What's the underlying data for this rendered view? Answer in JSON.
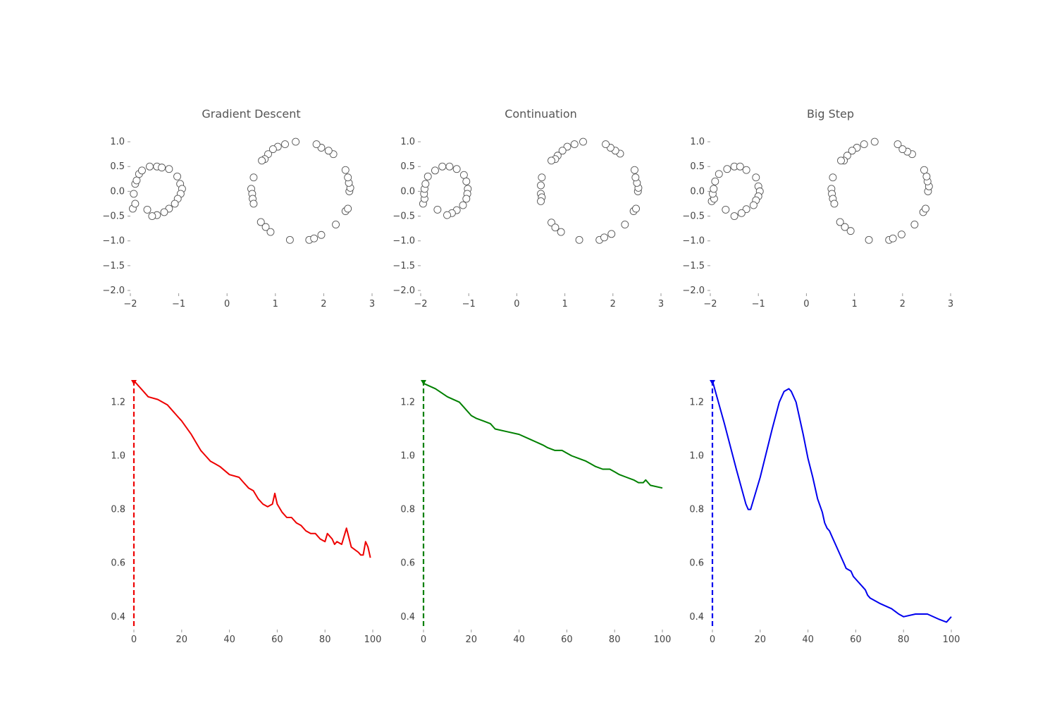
{
  "chart_data": [
    {
      "type": "scatter",
      "title": "Gradient Descent",
      "xlim": [
        -2,
        3
      ],
      "ylim": [
        -2,
        1.2
      ],
      "xticks": [
        "−2",
        "−1",
        "0",
        "1",
        "2",
        "3"
      ],
      "yticks": [
        "1.0",
        "0.5",
        "0.0",
        "−0.5",
        "−1.0",
        "−1.5",
        "−2.0"
      ],
      "marker_color": "#ffffff",
      "marker_edge_color": "#555555",
      "series": [
        {
          "points": [
            [
              -1.95,
              -0.35
            ],
            [
              -1.9,
              -0.25
            ],
            [
              -1.93,
              -0.05
            ],
            [
              -1.9,
              0.15
            ],
            [
              -1.87,
              0.22
            ],
            [
              -1.82,
              0.35
            ],
            [
              -1.76,
              0.42
            ],
            [
              -1.6,
              0.5
            ],
            [
              -1.45,
              0.5
            ],
            [
              -1.35,
              0.48
            ],
            [
              -1.2,
              0.45
            ],
            [
              -1.03,
              0.3
            ],
            [
              -0.97,
              0.15
            ],
            [
              -0.93,
              0.05
            ],
            [
              -0.96,
              -0.05
            ],
            [
              -1.02,
              -0.15
            ],
            [
              -1.08,
              -0.25
            ],
            [
              -1.2,
              -0.35
            ],
            [
              -1.3,
              -0.42
            ],
            [
              -1.45,
              -0.48
            ],
            [
              -1.55,
              -0.5
            ],
            [
              -1.65,
              -0.37
            ]
          ]
        },
        {
          "points": [
            [
              0.55,
              0.28
            ],
            [
              0.5,
              0.05
            ],
            [
              0.52,
              -0.05
            ],
            [
              0.53,
              -0.15
            ],
            [
              0.55,
              -0.25
            ],
            [
              0.7,
              -0.62
            ],
            [
              0.8,
              -0.72
            ],
            [
              0.9,
              -0.82
            ],
            [
              1.3,
              -0.98
            ],
            [
              1.7,
              -0.98
            ],
            [
              1.8,
              -0.95
            ],
            [
              1.95,
              -0.88
            ],
            [
              2.25,
              -0.67
            ],
            [
              2.45,
              -0.4
            ],
            [
              2.5,
              -0.35
            ],
            [
              2.53,
              0.0
            ],
            [
              2.55,
              0.07
            ],
            [
              2.52,
              0.17
            ],
            [
              2.5,
              0.28
            ],
            [
              2.45,
              0.43
            ],
            [
              2.2,
              0.75
            ],
            [
              2.1,
              0.82
            ],
            [
              1.95,
              0.88
            ],
            [
              1.85,
              0.95
            ],
            [
              1.42,
              1.0
            ],
            [
              1.2,
              0.95
            ],
            [
              1.05,
              0.9
            ],
            [
              0.95,
              0.85
            ],
            [
              0.85,
              0.75
            ],
            [
              0.78,
              0.65
            ],
            [
              0.72,
              0.62
            ]
          ]
        }
      ]
    },
    {
      "type": "scatter",
      "title": "Continuation",
      "xlim": [
        -2,
        3
      ],
      "ylim": [
        -2,
        1.2
      ],
      "xticks": [
        "−2",
        "−1",
        "0",
        "1",
        "2",
        "3"
      ],
      "yticks": [
        "1.0",
        "0.5",
        "0.0",
        "−0.5",
        "−1.0",
        "−1.5",
        "−2.0"
      ],
      "marker_color": "#ffffff",
      "marker_edge_color": "#555555",
      "series": [
        {
          "points": [
            [
              -1.95,
              -0.25
            ],
            [
              -1.92,
              -0.15
            ],
            [
              -1.93,
              -0.05
            ],
            [
              -1.92,
              0.05
            ],
            [
              -1.9,
              0.15
            ],
            [
              -1.85,
              0.3
            ],
            [
              -1.7,
              0.42
            ],
            [
              -1.55,
              0.5
            ],
            [
              -1.4,
              0.5
            ],
            [
              -1.25,
              0.45
            ],
            [
              -1.1,
              0.33
            ],
            [
              -1.05,
              0.2
            ],
            [
              -1.02,
              0.05
            ],
            [
              -1.03,
              -0.05
            ],
            [
              -1.05,
              -0.15
            ],
            [
              -1.12,
              -0.28
            ],
            [
              -1.25,
              -0.38
            ],
            [
              -1.35,
              -0.44
            ],
            [
              -1.45,
              -0.48
            ],
            [
              -1.65,
              -0.37
            ]
          ]
        },
        {
          "points": [
            [
              0.52,
              0.28
            ],
            [
              0.5,
              0.12
            ],
            [
              0.5,
              -0.05
            ],
            [
              0.52,
              -0.12
            ],
            [
              0.5,
              -0.2
            ],
            [
              0.72,
              -0.63
            ],
            [
              0.8,
              -0.73
            ],
            [
              0.92,
              -0.82
            ],
            [
              1.3,
              -0.98
            ],
            [
              1.72,
              -0.98
            ],
            [
              1.82,
              -0.93
            ],
            [
              1.97,
              -0.86
            ],
            [
              2.25,
              -0.67
            ],
            [
              2.43,
              -0.4
            ],
            [
              2.48,
              -0.35
            ],
            [
              2.52,
              0.0
            ],
            [
              2.53,
              0.07
            ],
            [
              2.5,
              0.17
            ],
            [
              2.47,
              0.28
            ],
            [
              2.45,
              0.43
            ],
            [
              2.15,
              0.76
            ],
            [
              2.05,
              0.82
            ],
            [
              1.95,
              0.88
            ],
            [
              1.85,
              0.95
            ],
            [
              1.38,
              1.0
            ],
            [
              1.2,
              0.95
            ],
            [
              1.05,
              0.9
            ],
            [
              0.95,
              0.82
            ],
            [
              0.85,
              0.72
            ],
            [
              0.8,
              0.65
            ],
            [
              0.72,
              0.62
            ]
          ]
        }
      ]
    },
    {
      "type": "scatter",
      "title": "Big Step",
      "xlim": [
        -2,
        3
      ],
      "ylim": [
        -2,
        1.2
      ],
      "xticks": [
        "−2",
        "−1",
        "0",
        "1",
        "2",
        "3"
      ],
      "yticks": [
        "1.0",
        "0.5",
        "0.0",
        "−0.5",
        "−1.0",
        "−1.5",
        "−2.0"
      ],
      "marker_color": "#ffffff",
      "marker_edge_color": "#555555",
      "series": [
        {
          "points": [
            [
              -1.97,
              -0.2
            ],
            [
              -1.92,
              -0.15
            ],
            [
              -1.95,
              -0.05
            ],
            [
              -1.93,
              0.05
            ],
            [
              -1.9,
              0.2
            ],
            [
              -1.82,
              0.35
            ],
            [
              -1.65,
              0.45
            ],
            [
              -1.5,
              0.5
            ],
            [
              -1.38,
              0.5
            ],
            [
              -1.25,
              0.43
            ],
            [
              -1.05,
              0.28
            ],
            [
              -1.0,
              0.1
            ],
            [
              -0.97,
              0.0
            ],
            [
              -1.0,
              -0.1
            ],
            [
              -1.05,
              -0.18
            ],
            [
              -1.1,
              -0.28
            ],
            [
              -1.25,
              -0.36
            ],
            [
              -1.35,
              -0.44
            ],
            [
              -1.5,
              -0.5
            ],
            [
              -1.68,
              -0.37
            ]
          ]
        },
        {
          "points": [
            [
              0.55,
              0.28
            ],
            [
              0.52,
              0.05
            ],
            [
              0.53,
              -0.05
            ],
            [
              0.55,
              -0.15
            ],
            [
              0.58,
              -0.25
            ],
            [
              0.7,
              -0.62
            ],
            [
              0.8,
              -0.72
            ],
            [
              0.92,
              -0.8
            ],
            [
              1.3,
              -0.98
            ],
            [
              1.72,
              -0.98
            ],
            [
              1.8,
              -0.95
            ],
            [
              1.98,
              -0.87
            ],
            [
              2.25,
              -0.67
            ],
            [
              2.43,
              -0.42
            ],
            [
              2.48,
              -0.35
            ],
            [
              2.53,
              0.0
            ],
            [
              2.55,
              0.1
            ],
            [
              2.52,
              0.2
            ],
            [
              2.5,
              0.3
            ],
            [
              2.45,
              0.43
            ],
            [
              2.2,
              0.75
            ],
            [
              2.1,
              0.8
            ],
            [
              2.0,
              0.85
            ],
            [
              1.9,
              0.95
            ],
            [
              1.42,
              1.0
            ],
            [
              1.2,
              0.95
            ],
            [
              1.05,
              0.88
            ],
            [
              0.95,
              0.82
            ],
            [
              0.85,
              0.72
            ],
            [
              0.78,
              0.62
            ],
            [
              0.72,
              0.62
            ]
          ]
        }
      ]
    },
    {
      "type": "line",
      "xlim": [
        0,
        100
      ],
      "ylim": [
        0.36,
        1.28
      ],
      "xticks": [
        0,
        20,
        40,
        60,
        80,
        100
      ],
      "yticks": [
        "1.2",
        "1.0",
        "0.8",
        "0.6",
        "0.4"
      ],
      "color": "#ee0000",
      "marker_x": 0,
      "x": [
        0,
        4,
        6,
        10,
        14,
        16,
        18,
        20,
        24,
        26,
        28,
        30,
        32,
        34,
        36,
        40,
        44,
        46,
        48,
        50,
        52,
        54,
        56,
        58,
        59,
        60,
        62,
        64,
        66,
        68,
        70,
        72,
        74,
        76,
        78,
        80,
        81,
        83,
        84,
        85,
        87,
        88,
        89,
        91,
        94,
        95,
        96,
        97,
        98,
        99
      ],
      "y": [
        1.28,
        1.24,
        1.22,
        1.21,
        1.19,
        1.17,
        1.15,
        1.13,
        1.08,
        1.05,
        1.02,
        1.0,
        0.98,
        0.97,
        0.96,
        0.93,
        0.92,
        0.9,
        0.88,
        0.87,
        0.84,
        0.82,
        0.81,
        0.82,
        0.86,
        0.82,
        0.79,
        0.77,
        0.77,
        0.75,
        0.74,
        0.72,
        0.71,
        0.71,
        0.69,
        0.68,
        0.71,
        0.69,
        0.67,
        0.68,
        0.67,
        0.7,
        0.73,
        0.66,
        0.64,
        0.63,
        0.63,
        0.68,
        0.66,
        0.62
      ]
    },
    {
      "type": "line",
      "xlim": [
        0,
        100
      ],
      "ylim": [
        0.36,
        1.28
      ],
      "xticks": [
        0,
        20,
        40,
        60,
        80,
        100
      ],
      "yticks": [
        "1.2",
        "1.0",
        "0.8",
        "0.6",
        "0.4"
      ],
      "color": "#008000",
      "marker_x": 0,
      "x": [
        0,
        5,
        10,
        15,
        18,
        20,
        22,
        25,
        28,
        30,
        35,
        40,
        45,
        50,
        52,
        55,
        58,
        60,
        62,
        65,
        68,
        70,
        72,
        75,
        78,
        80,
        82,
        85,
        88,
        90,
        92,
        93,
        95,
        100
      ],
      "y": [
        1.27,
        1.25,
        1.22,
        1.2,
        1.17,
        1.15,
        1.14,
        1.13,
        1.12,
        1.1,
        1.09,
        1.08,
        1.06,
        1.04,
        1.03,
        1.02,
        1.02,
        1.01,
        1.0,
        0.99,
        0.98,
        0.97,
        0.96,
        0.95,
        0.95,
        0.94,
        0.93,
        0.92,
        0.91,
        0.9,
        0.9,
        0.91,
        0.89,
        0.88
      ]
    },
    {
      "type": "line",
      "xlim": [
        0,
        100
      ],
      "ylim": [
        0.36,
        1.28
      ],
      "xticks": [
        0,
        20,
        40,
        60,
        80,
        100
      ],
      "yticks": [
        "1.2",
        "1.0",
        "0.8",
        "0.6",
        "0.4"
      ],
      "color": "#0000ee",
      "marker_x": 0,
      "x": [
        0,
        5,
        10,
        14,
        15,
        16,
        20,
        25,
        28,
        30,
        32,
        33,
        35,
        38,
        40,
        42,
        44,
        46,
        47,
        48,
        49,
        50,
        52,
        54,
        55,
        56,
        58,
        59,
        60,
        62,
        64,
        65,
        66,
        70,
        75,
        78,
        80,
        85,
        90,
        95,
        98,
        100
      ],
      "y": [
        1.28,
        1.12,
        0.95,
        0.82,
        0.8,
        0.8,
        0.92,
        1.1,
        1.2,
        1.24,
        1.25,
        1.24,
        1.2,
        1.08,
        0.99,
        0.92,
        0.84,
        0.79,
        0.75,
        0.73,
        0.72,
        0.7,
        0.66,
        0.62,
        0.6,
        0.58,
        0.57,
        0.55,
        0.54,
        0.52,
        0.5,
        0.48,
        0.47,
        0.45,
        0.43,
        0.41,
        0.4,
        0.41,
        0.41,
        0.39,
        0.38,
        0.4
      ]
    }
  ]
}
